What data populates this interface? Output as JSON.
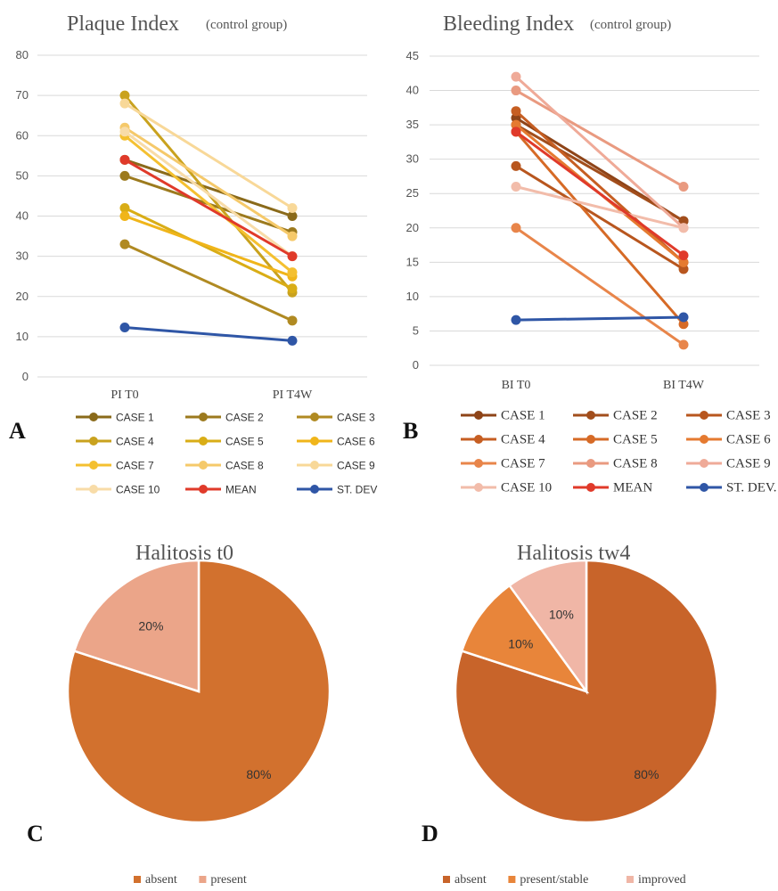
{
  "panels": {
    "a": "A",
    "b": "B",
    "c": "C",
    "d": "D"
  },
  "chart_data": [
    {
      "type": "line",
      "title": "Plaque Index",
      "subtitle": "(control group)",
      "categories": [
        "PI T0",
        "PI T4W"
      ],
      "ylim": [
        0,
        80
      ],
      "yticks": [
        0,
        10,
        20,
        30,
        40,
        50,
        60,
        70,
        80
      ],
      "grid": true,
      "legend_position": "bottom",
      "series": [
        {
          "name": "CASE 1",
          "values": [
            54,
            40
          ],
          "color": "#8a6a1a"
        },
        {
          "name": "CASE 2",
          "values": [
            50,
            36
          ],
          "color": "#9c7a1e"
        },
        {
          "name": "CASE 3",
          "values": [
            33,
            14
          ],
          "color": "#b08a22"
        },
        {
          "name": "CASE 4",
          "values": [
            70,
            21
          ],
          "color": "#c9a21e"
        },
        {
          "name": "CASE 5",
          "values": [
            42,
            22
          ],
          "color": "#d9ad16"
        },
        {
          "name": "CASE 6",
          "values": [
            40,
            25
          ],
          "color": "#f0b51a"
        },
        {
          "name": "CASE 7",
          "values": [
            60,
            26
          ],
          "color": "#f4c030"
        },
        {
          "name": "CASE 8",
          "values": [
            62,
            35
          ],
          "color": "#f5c96a"
        },
        {
          "name": "CASE 9",
          "values": [
            68,
            42
          ],
          "color": "#f8d898"
        },
        {
          "name": "CASE 10",
          "values": [
            61,
            30
          ],
          "color": "#f8dca8"
        },
        {
          "name": "MEAN",
          "values": [
            54,
            30
          ],
          "color": "#e03a2a"
        },
        {
          "name": "ST. DEV",
          "values": [
            12.3,
            9
          ],
          "color": "#2f56a6"
        }
      ]
    },
    {
      "type": "line",
      "title": "Bleeding Index",
      "subtitle": "(control group)",
      "categories": [
        "BI T0",
        "BI T4W"
      ],
      "ylim": [
        0,
        45
      ],
      "yticks": [
        0,
        5,
        10,
        15,
        20,
        25,
        30,
        35,
        40,
        45
      ],
      "grid": true,
      "legend_position": "bottom",
      "series": [
        {
          "name": "CASE 1",
          "values": [
            36,
            21
          ],
          "color": "#8e4418"
        },
        {
          "name": "CASE 2",
          "values": [
            35,
            21
          ],
          "color": "#a24e1c"
        },
        {
          "name": "CASE 3",
          "values": [
            29,
            14
          ],
          "color": "#b8561e"
        },
        {
          "name": "CASE 4",
          "values": [
            37,
            15
          ],
          "color": "#c65e22"
        },
        {
          "name": "CASE 5",
          "values": [
            34,
            6
          ],
          "color": "#d66a26"
        },
        {
          "name": "CASE 6",
          "values": [
            35,
            15
          ],
          "color": "#e57a30"
        },
        {
          "name": "CASE 7",
          "values": [
            20,
            3
          ],
          "color": "#e8854a"
        },
        {
          "name": "CASE 8",
          "values": [
            40,
            26
          ],
          "color": "#e99a80"
        },
        {
          "name": "CASE 9",
          "values": [
            42,
            20
          ],
          "color": "#efaa98"
        },
        {
          "name": "CASE 10",
          "values": [
            26,
            20
          ],
          "color": "#f2bcaa"
        },
        {
          "name": "MEAN",
          "values": [
            34,
            16
          ],
          "color": "#e03a2a"
        },
        {
          "name": "ST. DEV.",
          "values": [
            6.6,
            7
          ],
          "color": "#2f56a6"
        }
      ]
    },
    {
      "type": "pie",
      "title": "Halitosis t0",
      "legend_position": "bottom",
      "slices": [
        {
          "label": "absent",
          "value": 80,
          "display": "80%",
          "color": "#d2712e"
        },
        {
          "label": "present",
          "value": 20,
          "display": "20%",
          "color": "#eba589"
        }
      ]
    },
    {
      "type": "pie",
      "title": "Halitosis tw4",
      "legend_position": "bottom",
      "slices": [
        {
          "label": "absent",
          "value": 80,
          "display": "80%",
          "color": "#c8642a"
        },
        {
          "label": "present/stable",
          "value": 10,
          "display": "10%",
          "color": "#e8853a"
        },
        {
          "label": "improved",
          "value": 10,
          "display": "10%",
          "color": "#f0b6a6"
        }
      ]
    }
  ]
}
